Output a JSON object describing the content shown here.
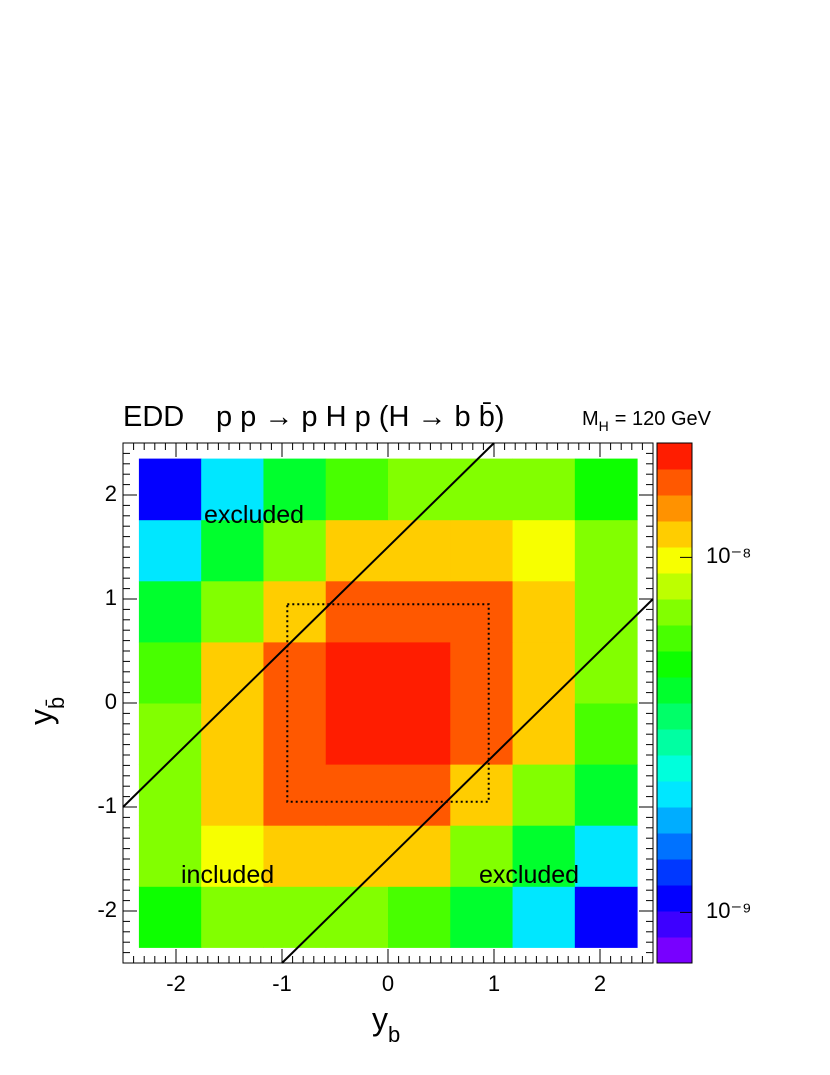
{
  "chart_data": {
    "type": "heatmap",
    "title": "EDD",
    "process": "p p → p H p  (H → b b̄)",
    "mass_label": {
      "symbol": "M",
      "subscript": "H",
      "text": "= 120 GeV"
    },
    "x_label": {
      "text": "y",
      "subscript": "b"
    },
    "y_label": {
      "text": "y",
      "subscript": "b̄"
    },
    "annotations": [
      "excluded",
      "included",
      "excluded"
    ],
    "xlim": [
      -2.5,
      2.5
    ],
    "ylim": [
      -2.5,
      2.5
    ],
    "xticks": [
      -2,
      -1,
      0,
      1,
      2
    ],
    "yticks": [
      -2,
      -1,
      0,
      1,
      2
    ],
    "zlim": [
      7.2e-10,
      2.1e-08
    ],
    "zticks": [
      {
        "value": 1e-09,
        "label": "10⁻⁹"
      },
      {
        "value": 1e-08,
        "label": "10⁻⁸"
      }
    ],
    "log_z": true,
    "x_edges": [
      -2.35,
      -1.7625,
      -1.175,
      -0.5875,
      0,
      0.5875,
      1.175,
      1.7625,
      2.35
    ],
    "y_edges": [
      -2.35,
      -1.7625,
      -1.175,
      -0.5875,
      0,
      0.5875,
      1.175,
      1.7625,
      2.35
    ],
    "z": [
      [
        4.64e-09,
        6.51e-09,
        7.6e-09,
        7.37e-09,
        5.94e-09,
        3.97e-09,
        2.22e-09,
        1.04e-09
      ],
      [
        6.51e-09,
        9.72e-09,
        1.21e-08,
        1.24e-08,
        1.07e-08,
        7.6e-09,
        4.49e-09,
        2.22e-09
      ],
      [
        7.6e-09,
        1.21e-08,
        1.59e-08,
        1.75e-08,
        1.59e-08,
        1.21e-08,
        7.6e-09,
        3.97e-09
      ],
      [
        7.37e-09,
        1.24e-08,
        1.75e-08,
        2.04e-08,
        1.97e-08,
        1.59e-08,
        1.07e-08,
        5.94e-09
      ],
      [
        5.94e-09,
        1.07e-08,
        1.59e-08,
        1.97e-08,
        2.04e-08,
        1.75e-08,
        1.24e-08,
        7.37e-09
      ],
      [
        3.97e-09,
        7.6e-09,
        1.21e-08,
        1.59e-08,
        1.75e-08,
        1.59e-08,
        1.21e-08,
        7.6e-09
      ],
      [
        2.22e-09,
        4.49e-09,
        7.6e-09,
        1.07e-08,
        1.24e-08,
        1.21e-08,
        9.72e-09,
        6.51e-09
      ],
      [
        1.04e-09,
        2.22e-09,
        3.97e-09,
        5.94e-09,
        7.37e-09,
        7.6e-09,
        6.51e-09,
        4.64e-09
      ]
    ],
    "lines": [
      {
        "x": [
          -2.5,
          1
        ],
        "y": [
          -1,
          2.5
        ]
      },
      {
        "x": [
          -1,
          2.5
        ],
        "y": [
          -2.5,
          1
        ]
      }
    ],
    "box": {
      "x": [
        -0.95,
        0.95
      ],
      "y": [
        -0.95,
        0.95
      ]
    }
  }
}
